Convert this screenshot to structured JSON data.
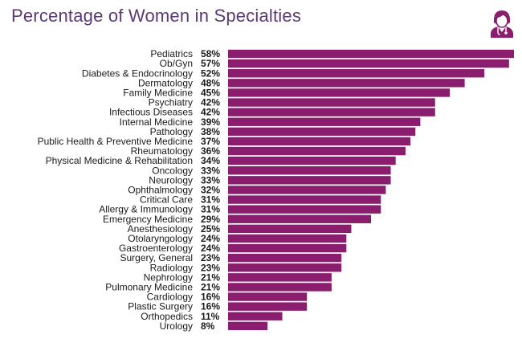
{
  "title": "Percentage of Women in Specialties",
  "icon": "doctor-icon",
  "colors": {
    "bar": "#8a1d6e",
    "title": "#5b3a73",
    "icon": "#8a1d6e"
  },
  "chart_data": {
    "type": "bar",
    "orientation": "horizontal",
    "title": "Percentage of Women in Specialties",
    "xlabel": "",
    "ylabel": "",
    "value_suffix": "%",
    "grid": false,
    "legend": "none",
    "xlim": [
      0,
      58
    ],
    "categories": [
      "Pediatrics",
      "Ob/Gyn",
      "Diabetes & Endocrinology",
      "Dermatology",
      "Family Medicine",
      "Psychiatry",
      "Infectious Diseases",
      "Internal Medicine",
      "Pathology",
      "Public Health & Preventive Medicine",
      "Rheumatology",
      "Physical Medicine & Rehabilitation",
      "Oncology",
      "Neurology",
      "Ophthalmology",
      "Critical Care",
      "Allergy & Immunology",
      "Emergency Medicine",
      "Anesthesiology",
      "Otolaryngology",
      "Gastroenterology",
      "Surgery, General",
      "Radiology",
      "Nephrology",
      "Pulmonary Medicine",
      "Cardiology",
      "Plastic Surgery",
      "Orthopedics",
      "Urology"
    ],
    "values": [
      58,
      57,
      52,
      48,
      45,
      42,
      42,
      39,
      38,
      37,
      36,
      34,
      33,
      33,
      32,
      31,
      31,
      29,
      25,
      24,
      24,
      23,
      23,
      21,
      21,
      16,
      16,
      11,
      8
    ],
    "value_labels": [
      "58%",
      "57%",
      "52%",
      "48%",
      "45%",
      "42%",
      "42%",
      "39%",
      "38%",
      "37%",
      "36%",
      "34%",
      "33%",
      "33%",
      "32%",
      "31%",
      "31%",
      "29%",
      "25%",
      "24%",
      "24%",
      "23%",
      "23%",
      "21%",
      "21%",
      "16%",
      "16%",
      "11%",
      "8%"
    ]
  }
}
